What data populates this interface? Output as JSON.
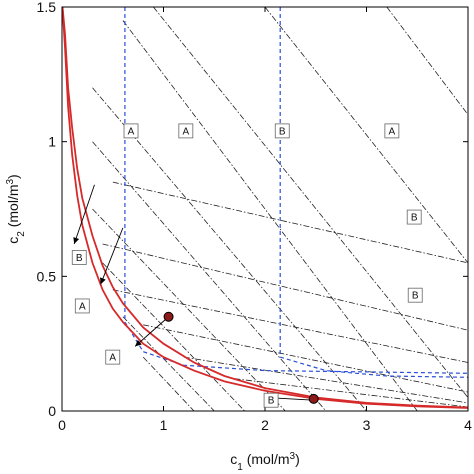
{
  "chart_data": {
    "type": "line",
    "title": "",
    "xlabel": {
      "pre": "c",
      "sub": "1",
      "units_pre": " (mol/m",
      "sup": "3",
      "units_post": ")"
    },
    "ylabel": {
      "pre": "c",
      "sub": "2",
      "units_pre": " (mol/m",
      "sup": "3",
      "units_post": ")"
    },
    "xlim": [
      0,
      4
    ],
    "ylim": [
      0,
      1.5
    ],
    "xticks": [
      "0",
      "1",
      "2",
      "3",
      "4"
    ],
    "yticks": [
      "0",
      "0.5",
      "1",
      "1.5"
    ],
    "colors": {
      "red": "#d62a2a",
      "blue": "#2b4fd8",
      "black": "#222222",
      "marker": "#8b1a1a"
    },
    "red_curves": [
      {
        "x": [
          0.005,
          0.03,
          0.06,
          0.1,
          0.15,
          0.2,
          0.3,
          0.4,
          0.5,
          0.6,
          0.8,
          1.0,
          1.3,
          1.6,
          2.0,
          2.5,
          3.0,
          3.5,
          4.0
        ],
        "y": [
          1.5,
          1.35,
          1.13,
          0.95,
          0.8,
          0.69,
          0.55,
          0.45,
          0.38,
          0.33,
          0.25,
          0.2,
          0.15,
          0.11,
          0.075,
          0.045,
          0.027,
          0.017,
          0.011
        ]
      },
      {
        "x": [
          0.005,
          0.03,
          0.06,
          0.1,
          0.15,
          0.2,
          0.3,
          0.4,
          0.5,
          0.6,
          0.8,
          1.0,
          1.3,
          1.6,
          2.0,
          2.5,
          3.0,
          3.5,
          4.0
        ],
        "y": [
          1.5,
          1.4,
          1.2,
          1.05,
          0.9,
          0.79,
          0.65,
          0.54,
          0.46,
          0.4,
          0.31,
          0.25,
          0.18,
          0.13,
          0.085,
          0.05,
          0.03,
          0.02,
          0.013
        ]
      }
    ],
    "blue_dashed": [
      {
        "x": [
          0.62,
          0.62,
          0.62,
          0.8,
          1.2,
          2.0,
          3.0,
          4.0
        ],
        "y": [
          1.5,
          1.0,
          0.33,
          0.22,
          0.17,
          0.15,
          0.145,
          0.14
        ]
      },
      {
        "x": [
          2.15,
          2.15,
          2.15,
          2.6,
          3.2,
          4.0
        ],
        "y": [
          1.5,
          1.0,
          0.2,
          0.15,
          0.13,
          0.125
        ]
      }
    ],
    "black_dashdot": [
      {
        "x": [
          0.6,
          3.5
        ],
        "y": [
          1.45,
          0.0
        ]
      },
      {
        "x": [
          0.9,
          4.0
        ],
        "y": [
          1.5,
          0.05
        ]
      },
      {
        "x": [
          2.0,
          4.0
        ],
        "y": [
          1.5,
          0.55
        ]
      },
      {
        "x": [
          3.2,
          4.0
        ],
        "y": [
          1.5,
          1.1
        ]
      },
      {
        "x": [
          0.5,
          4.0
        ],
        "y": [
          0.85,
          0.55
        ]
      },
      {
        "x": [
          0.4,
          4.0
        ],
        "y": [
          0.62,
          0.3
        ]
      },
      {
        "x": [
          0.5,
          4.0
        ],
        "y": [
          0.45,
          0.18
        ]
      },
      {
        "x": [
          0.8,
          4.0
        ],
        "y": [
          0.32,
          0.07
        ]
      },
      {
        "x": [
          1.2,
          4.0
        ],
        "y": [
          0.2,
          0.03
        ]
      },
      {
        "x": [
          1.7,
          4.0
        ],
        "y": [
          0.12,
          0.015
        ]
      },
      {
        "x": [
          0.3,
          3.0
        ],
        "y": [
          1.2,
          0.0
        ]
      },
      {
        "x": [
          0.3,
          2.6
        ],
        "y": [
          1.0,
          0.0
        ]
      },
      {
        "x": [
          0.3,
          2.2
        ],
        "y": [
          0.75,
          0.0
        ]
      },
      {
        "x": [
          0.4,
          1.8
        ],
        "y": [
          0.55,
          0.0
        ]
      },
      {
        "x": [
          0.6,
          1.5
        ],
        "y": [
          0.35,
          0.0
        ]
      },
      {
        "x": [
          0.8,
          1.3
        ],
        "y": [
          0.2,
          0.0
        ]
      }
    ],
    "annotations": [
      {
        "text": "A",
        "x": 0.68,
        "y": 1.04
      },
      {
        "text": "A",
        "x": 1.22,
        "y": 1.04
      },
      {
        "text": "B",
        "x": 2.17,
        "y": 1.04
      },
      {
        "text": "A",
        "x": 3.25,
        "y": 1.04
      },
      {
        "text": "B",
        "x": 3.47,
        "y": 0.72
      },
      {
        "text": "B",
        "x": 3.48,
        "y": 0.43
      },
      {
        "text": "B",
        "x": 0.17,
        "y": 0.57
      },
      {
        "text": "A",
        "x": 0.2,
        "y": 0.39
      },
      {
        "text": "A",
        "x": 0.5,
        "y": 0.2
      },
      {
        "text": "B",
        "x": 2.06,
        "y": 0.04
      }
    ],
    "arrows": [
      {
        "from": [
          0.32,
          0.84
        ],
        "to": [
          0.12,
          0.62
        ]
      },
      {
        "from": [
          0.6,
          0.68
        ],
        "to": [
          0.38,
          0.47
        ]
      },
      {
        "from": [
          1.05,
          0.35
        ],
        "to": [
          0.72,
          0.24
        ]
      },
      {
        "from": [
          2.48,
          0.04
        ],
        "to": [
          2.02,
          0.05
        ]
      }
    ],
    "markers": [
      {
        "x": 1.05,
        "y": 0.35
      },
      {
        "x": 2.48,
        "y": 0.045
      }
    ]
  }
}
